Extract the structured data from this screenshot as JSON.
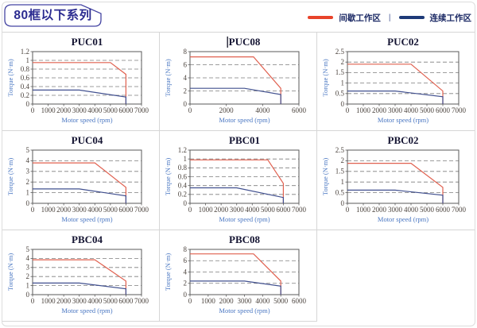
{
  "header": {
    "series_title": "80框以下系列"
  },
  "legend": {
    "separator": "|",
    "items": [
      {
        "label": "间歇工作区",
        "color": "#e8432a"
      },
      {
        "label": "连续工作区",
        "color": "#1e3a78"
      }
    ]
  },
  "colors": {
    "curve_intermittent": "#e0604f",
    "curve_continuous": "#41508f",
    "grid_border": "#d6d6d6",
    "title_box_border": "#4444a2",
    "title_box_text": "#2b2b90"
  },
  "chart_data": [
    {
      "type": "line",
      "title": "PUC01",
      "cursor": false,
      "xlabel": "Motor speed (rpm)",
      "ylabel": "Torque (N·m)",
      "xlim": [
        0,
        7000
      ],
      "xtick_step": 1000,
      "ylim": [
        0,
        1.2
      ],
      "ytick_step": 0.2,
      "grid": "horizontal-dashed",
      "series": [
        {
          "name": "间歇工作区",
          "color": "#e0604f",
          "points": [
            [
              0,
              0.95
            ],
            [
              5000,
              0.95
            ],
            [
              6000,
              0.68
            ],
            [
              6000,
              0
            ]
          ]
        },
        {
          "name": "连续工作区",
          "color": "#41508f",
          "points": [
            [
              0,
              0.32
            ],
            [
              3000,
              0.32
            ],
            [
              6000,
              0.16
            ],
            [
              6000,
              0
            ]
          ]
        }
      ]
    },
    {
      "type": "line",
      "title": "PUC08",
      "cursor": true,
      "xlabel": "Motor speed (rpm)",
      "ylabel": "Torque (N·m)",
      "xlim": [
        0,
        6000
      ],
      "xtick_step": 2000,
      "ylim": [
        0,
        8
      ],
      "ytick_step": 2,
      "grid": "horizontal-dashed",
      "series": [
        {
          "name": "间歇工作区",
          "color": "#e0604f",
          "points": [
            [
              0,
              7.2
            ],
            [
              3500,
              7.2
            ],
            [
              5000,
              2.4
            ],
            [
              5000,
              0
            ]
          ]
        },
        {
          "name": "连续工作区",
          "color": "#41508f",
          "points": [
            [
              0,
              2.4
            ],
            [
              3000,
              2.4
            ],
            [
              5000,
              1.45
            ],
            [
              5000,
              0
            ]
          ]
        }
      ]
    },
    {
      "type": "line",
      "title": "PUC02",
      "cursor": false,
      "xlabel": "Motor speed (rpm)",
      "ylabel": "Torque (N·m)",
      "xlim": [
        0,
        7000
      ],
      "xtick_step": 1000,
      "ylim": [
        0,
        2.5
      ],
      "ytick_step": 0.5,
      "grid": "horizontal-dashed",
      "series": [
        {
          "name": "间歇工作区",
          "color": "#e0604f",
          "points": [
            [
              0,
              1.9
            ],
            [
              4000,
              1.9
            ],
            [
              6000,
              0.62
            ],
            [
              6000,
              0
            ]
          ]
        },
        {
          "name": "连续工作区",
          "color": "#41508f",
          "points": [
            [
              0,
              0.62
            ],
            [
              3000,
              0.62
            ],
            [
              6000,
              0.35
            ],
            [
              6000,
              0
            ]
          ]
        }
      ]
    },
    {
      "type": "line",
      "title": "PUC04",
      "cursor": false,
      "xlabel": "Motor speed (rpm)",
      "ylabel": "Torque (N·m)",
      "xlim": [
        0,
        7000
      ],
      "xtick_step": 1000,
      "ylim": [
        0,
        5
      ],
      "ytick_step": 1,
      "grid": "horizontal-dashed",
      "series": [
        {
          "name": "间歇工作区",
          "color": "#e0604f",
          "points": [
            [
              0,
              3.8
            ],
            [
              4000,
              3.8
            ],
            [
              6000,
              1.5
            ],
            [
              6000,
              0
            ]
          ]
        },
        {
          "name": "连续工作区",
          "color": "#41508f",
          "points": [
            [
              0,
              1.35
            ],
            [
              3000,
              1.35
            ],
            [
              6000,
              0.7
            ],
            [
              6000,
              0
            ]
          ]
        }
      ]
    },
    {
      "type": "line",
      "title": "PBC01",
      "cursor": false,
      "xlabel": "Motor speed (rpm)",
      "ylabel": "Torque (N·m)",
      "xlim": [
        0,
        7000
      ],
      "xtick_step": 1000,
      "ylim": [
        0,
        1.2
      ],
      "ytick_step": 0.2,
      "grid": "horizontal-dashed",
      "series": [
        {
          "name": "间歇工作区",
          "color": "#e0604f",
          "points": [
            [
              0,
              0.98
            ],
            [
              5000,
              0.98
            ],
            [
              6000,
              0.45
            ],
            [
              6000,
              0
            ]
          ]
        },
        {
          "name": "连续工作区",
          "color": "#41508f",
          "points": [
            [
              0,
              0.35
            ],
            [
              3000,
              0.35
            ],
            [
              6000,
              0.13
            ],
            [
              6000,
              0
            ]
          ]
        }
      ]
    },
    {
      "type": "line",
      "title": "PBC02",
      "cursor": false,
      "xlabel": "Motor speed (rpm)",
      "ylabel": "Torque (N·m)",
      "xlim": [
        0,
        7000
      ],
      "xtick_step": 1000,
      "ylim": [
        0,
        2.5
      ],
      "ytick_step": 0.5,
      "grid": "horizontal-dashed",
      "series": [
        {
          "name": "间歇工作区",
          "color": "#e0604f",
          "points": [
            [
              0,
              1.88
            ],
            [
              4000,
              1.88
            ],
            [
              6000,
              0.75
            ],
            [
              6000,
              0
            ]
          ]
        },
        {
          "name": "连续工作区",
          "color": "#41508f",
          "points": [
            [
              0,
              0.62
            ],
            [
              3000,
              0.62
            ],
            [
              6000,
              0.38
            ],
            [
              6000,
              0
            ]
          ]
        }
      ]
    },
    {
      "type": "line",
      "title": "PBC04",
      "cursor": false,
      "xlabel": "Motor speed (rpm)",
      "ylabel": "Torque (N·m)",
      "xlim": [
        0,
        7000
      ],
      "xtick_step": 1000,
      "ylim": [
        0,
        5
      ],
      "ytick_step": 1,
      "grid": "horizontal-dashed",
      "series": [
        {
          "name": "间歇工作区",
          "color": "#e0604f",
          "points": [
            [
              0,
              3.85
            ],
            [
              4000,
              3.85
            ],
            [
              6000,
              1.5
            ],
            [
              6000,
              0
            ]
          ]
        },
        {
          "name": "连续工作区",
          "color": "#41508f",
          "points": [
            [
              0,
              1.28
            ],
            [
              3000,
              1.28
            ],
            [
              6000,
              0.65
            ],
            [
              6000,
              0
            ]
          ]
        }
      ]
    },
    {
      "type": "line",
      "title": "PBC08",
      "cursor": false,
      "xlabel": "Motor speed (rpm)",
      "ylabel": "Torque (N·m)",
      "xlim": [
        0,
        6000
      ],
      "xtick_step": 1000,
      "ylim": [
        0,
        8
      ],
      "ytick_step": 2,
      "grid": "horizontal-dashed",
      "series": [
        {
          "name": "间歇工作区",
          "color": "#e0604f",
          "points": [
            [
              0,
              7.2
            ],
            [
              3500,
              7.2
            ],
            [
              5000,
              2.4
            ],
            [
              5000,
              0
            ]
          ]
        },
        {
          "name": "连续工作区",
          "color": "#41508f",
          "points": [
            [
              0,
              2.4
            ],
            [
              3000,
              2.4
            ],
            [
              5000,
              1.5
            ],
            [
              5000,
              0
            ]
          ]
        }
      ]
    }
  ]
}
